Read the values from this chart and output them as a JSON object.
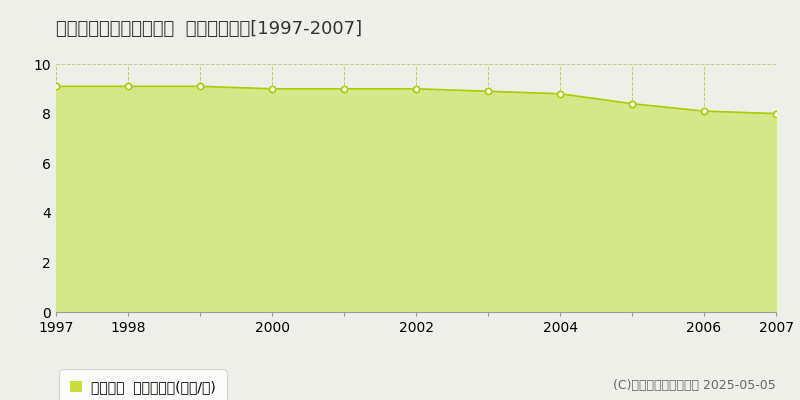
{
  "title": "中川郡幕別町札内若草町  基準地価推移[1997-2007]",
  "years": [
    1997,
    1998,
    1999,
    2000,
    2001,
    2002,
    2003,
    2004,
    2005,
    2006,
    2007
  ],
  "values": [
    9.1,
    9.1,
    9.1,
    9.0,
    9.0,
    9.0,
    8.9,
    8.8,
    8.4,
    8.1,
    8.0
  ],
  "ylim": [
    0,
    10
  ],
  "yticks": [
    0,
    2,
    4,
    6,
    8,
    10
  ],
  "line_color": "#aacc00",
  "fill_color": "#d4e88a",
  "marker_face": "#ffffff",
  "marker_edge": "#aacc00",
  "grid_color": "#bbcc88",
  "bg_color": "#efefea",
  "plot_bg_color": "#efefea",
  "legend_label": "基準地価  平均坪単価(万円/坪)",
  "legend_color": "#c8dc3c",
  "copyright": "(C)土地価格ドットコム 2025-05-05",
  "title_fontsize": 13,
  "axis_fontsize": 10,
  "legend_fontsize": 10,
  "copyright_fontsize": 9,
  "xtick_labels": [
    "1997",
    "1998",
    "",
    "2000",
    "",
    "2002",
    "",
    "2004",
    "",
    "2006",
    "2007"
  ]
}
